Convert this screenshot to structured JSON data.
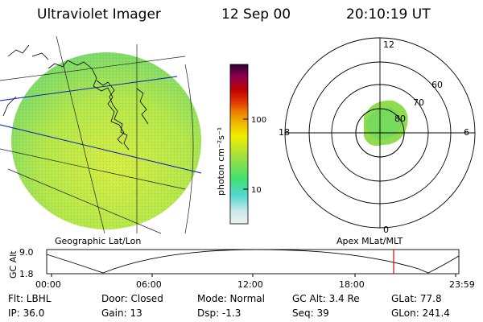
{
  "header": {
    "instrument": "Ultraviolet Imager",
    "date": "12 Sep 00",
    "time": "20:10:19 UT"
  },
  "colorbar": {
    "unit_label": "photon cm⁻²s⁻¹",
    "ticks": [
      "100",
      "10"
    ],
    "scale": "log",
    "colors": [
      "#f0f0f0",
      "#c8e8e8",
      "#50d8d0",
      "#40e070",
      "#a0e040",
      "#f0f000",
      "#f0c000",
      "#f08000",
      "#e03000",
      "#c00000",
      "#900050",
      "#300030"
    ]
  },
  "left_panel": {
    "label": "Geographic Lat/Lon"
  },
  "right_panel": {
    "label": "Apex  MLat/MLT",
    "mlt_labels": [
      "12",
      "18",
      "6",
      "0"
    ],
    "mlat_labels": [
      "60",
      "70",
      "80"
    ]
  },
  "altitude_plot": {
    "ylabel": "GC Alt",
    "yticks": [
      "9.0",
      "1.8"
    ],
    "xticks": [
      "00:00",
      "06:00",
      "12:00",
      "18:00",
      "23:59"
    ],
    "marker_color": "#e00000"
  },
  "info": {
    "filter": "Flt: LBHL",
    "ip": "IP: 36.0",
    "door": "Door: Closed",
    "gain": "Gain: 13",
    "mode": "Mode: Normal",
    "dsp": "Dsp:   -1.3",
    "gc_alt": "GC Alt: 3.4 Re",
    "seq": "Seq: 39",
    "glat": "GLat:  77.8",
    "glon": "GLon: 241.4"
  }
}
